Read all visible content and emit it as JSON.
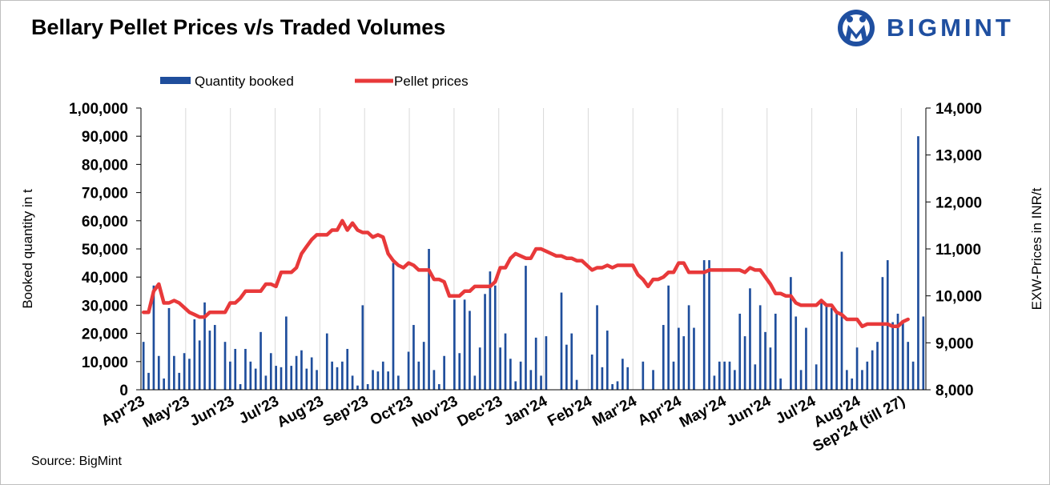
{
  "title": "Bellary Pellet Prices v/s Traded Volumes",
  "logo_text": "BIGMINT",
  "source": "Source: BigMint",
  "colors": {
    "bar": "#1f4e9c",
    "line": "#e8393a",
    "logo": "#1f4fa0"
  },
  "chart_data": {
    "type": "bar",
    "legend": {
      "bar_label": "Quantity booked",
      "line_label": "Pellet prices",
      "position": "top"
    },
    "ylabel": "Booked quantity in t",
    "y2label": "EXW-Prices in INR/t",
    "ylim": [
      0,
      100000
    ],
    "y2lim": [
      8000,
      14000
    ],
    "yticks": [
      "0",
      "10,000",
      "20,000",
      "30,000",
      "40,000",
      "50,000",
      "60,000",
      "70,000",
      "80,000",
      "90,000",
      "1,00,000"
    ],
    "y2ticks": [
      "8,000",
      "9,000",
      "10,000",
      "11,000",
      "12,000",
      "13,000",
      "14,000"
    ],
    "x_labels": [
      "Apr'23",
      "May'23",
      "Jun'23",
      "Jul'23",
      "Aug'23",
      "Sep'23",
      "Oct'23",
      "Nov'23",
      "Dec'23",
      "Jan'24",
      "Feb'24",
      "Mar'24",
      "Apr'24",
      "May'24",
      "Jun'24",
      "Jul'24",
      "Aug'24",
      "Sep'24 (till 27)"
    ],
    "grid": "vertical",
    "series": [
      {
        "name": "Quantity booked",
        "type": "bar",
        "axis": "left",
        "values": [
          17000,
          6000,
          37000,
          12000,
          4000,
          29000,
          12000,
          6000,
          13000,
          11000,
          25000,
          17500,
          31000,
          21000,
          23000,
          0,
          17000,
          10000,
          14500,
          2000,
          14500,
          10000,
          7500,
          20500,
          5000,
          13000,
          8500,
          8000,
          26000,
          8500,
          12000,
          14000,
          7500,
          11500,
          7000,
          0,
          20000,
          10000,
          8000,
          10000,
          14500,
          5000,
          1500,
          30000,
          2000,
          7000,
          6500,
          10000,
          6500,
          45000,
          5000,
          0,
          13500,
          23000,
          10000,
          17000,
          50000,
          7000,
          2000,
          12000,
          0,
          32000,
          13000,
          32000,
          28000,
          5000,
          15000,
          34000,
          42000,
          37000,
          15000,
          20000,
          11000,
          3000,
          10000,
          44000,
          7000,
          18500,
          5000,
          19000,
          0,
          0,
          34500,
          16000,
          20000,
          3500,
          0,
          0,
          12500,
          30000,
          8000,
          21000,
          2000,
          3000,
          11000,
          8000,
          0,
          0,
          10000,
          0,
          7000,
          0,
          23000,
          37000,
          10000,
          22000,
          19000,
          30000,
          22000,
          0,
          46000,
          46000,
          5000,
          10000,
          10000,
          10000,
          7000,
          27000,
          19000,
          36000,
          9000,
          30000,
          20500,
          15000,
          27000,
          4000,
          0,
          40000,
          26000,
          7000,
          22000,
          0,
          9000,
          32000,
          30000,
          29000,
          27000,
          49000,
          7000,
          4000,
          15000,
          7000,
          10000,
          14000,
          17000,
          40000,
          46000,
          24000,
          27000,
          24000,
          17000,
          10000,
          90000,
          26000
        ]
      },
      {
        "name": "Pellet prices",
        "type": "line",
        "axis": "right",
        "values": [
          9650,
          9650,
          10100,
          10250,
          9850,
          9850,
          9900,
          9850,
          9750,
          9650,
          9600,
          9550,
          9550,
          9650,
          9650,
          9650,
          9650,
          9850,
          9850,
          9950,
          10100,
          10100,
          10100,
          10100,
          10250,
          10250,
          10200,
          10500,
          10500,
          10500,
          10600,
          10900,
          11050,
          11200,
          11300,
          11300,
          11300,
          11400,
          11400,
          11600,
          11400,
          11550,
          11400,
          11350,
          11350,
          11250,
          11300,
          11250,
          10900,
          10750,
          10650,
          10600,
          10700,
          10650,
          10550,
          10550,
          10550,
          10350,
          10350,
          10300,
          10000,
          10000,
          10000,
          10100,
          10100,
          10200,
          10200,
          10200,
          10200,
          10300,
          10600,
          10600,
          10800,
          10900,
          10850,
          10800,
          10800,
          11000,
          11000,
          10950,
          10900,
          10850,
          10850,
          10800,
          10800,
          10750,
          10750,
          10650,
          10550,
          10600,
          10600,
          10650,
          10600,
          10650,
          10650,
          10650,
          10650,
          10450,
          10350,
          10200,
          10350,
          10350,
          10400,
          10500,
          10500,
          10700,
          10700,
          10500,
          10500,
          10500,
          10500,
          10550,
          10550,
          10550,
          10550,
          10550,
          10550,
          10550,
          10500,
          10600,
          10550,
          10550,
          10400,
          10250,
          10050,
          10050,
          10000,
          10000,
          9850,
          9800,
          9800,
          9800,
          9800,
          9900,
          9800,
          9800,
          9650,
          9600,
          9500,
          9500,
          9500,
          9350,
          9400,
          9400,
          9400,
          9400,
          9400,
          9350,
          9350,
          9450,
          9500
        ]
      }
    ]
  }
}
